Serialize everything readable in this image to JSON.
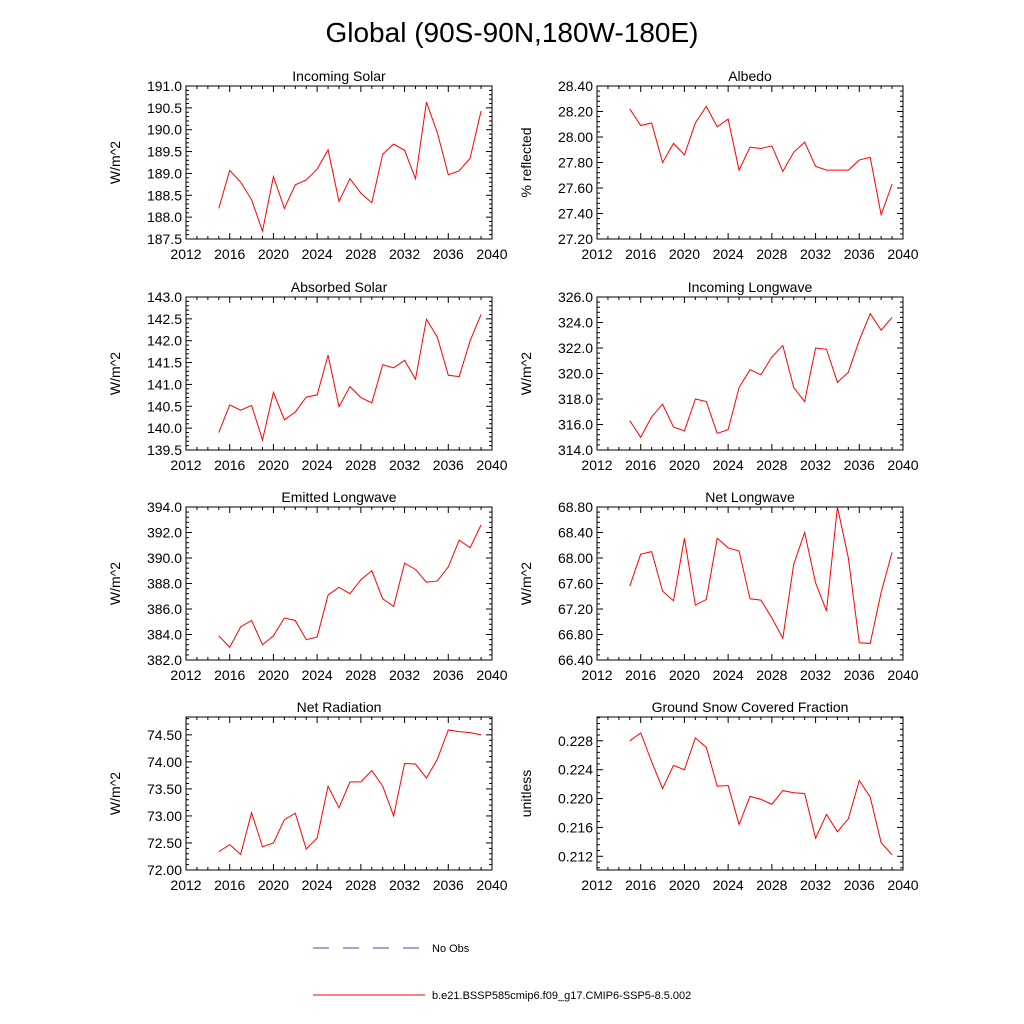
{
  "figure": {
    "title": "Global (90S-90N,180W-180E)",
    "legend": [
      {
        "label": "No Obs",
        "color": "#4a4aa8",
        "style": "dashed"
      },
      {
        "label": "b.e21.BSSP585cmip6.f09_g17.CMIP6-SSP5-8.5.002",
        "color": "#ff0000",
        "style": "solid"
      }
    ]
  },
  "chart_data": [
    {
      "type": "line",
      "title": "Incoming Solar",
      "ylabel": "W/m^2",
      "xlabel": "",
      "xlim": [
        2012,
        2040
      ],
      "xticks": [
        "2012",
        "2016",
        "2020",
        "2024",
        "2028",
        "2032",
        "2036",
        "2040"
      ],
      "ylim": [
        187.5,
        191.0
      ],
      "yticks": [
        "187.5",
        "188.0",
        "188.5",
        "189.0",
        "189.5",
        "190.0",
        "190.5",
        "191.0"
      ],
      "x": [
        2015,
        2016,
        2017,
        2018,
        2019,
        2020,
        2021,
        2022,
        2023,
        2024,
        2025,
        2026,
        2027,
        2028,
        2029,
        2030,
        2031,
        2032,
        2033,
        2034,
        2035,
        2036,
        2037,
        2038,
        2039
      ],
      "series": [
        {
          "name": "b.e21.BSSP585cmip6.f09_g17.CMIP6-SSP5-8.5.002",
          "color": "#ff0000",
          "values": [
            188.2,
            189.07,
            188.8,
            188.4,
            187.68,
            188.93,
            188.2,
            188.74,
            188.85,
            189.1,
            189.54,
            188.36,
            188.88,
            188.55,
            188.33,
            189.44,
            189.67,
            189.53,
            188.88,
            190.63,
            189.93,
            188.97,
            189.06,
            189.35,
            190.43
          ]
        }
      ]
    },
    {
      "type": "line",
      "title": "Albedo",
      "ylabel": "% reflected",
      "xlabel": "",
      "xlim": [
        2012,
        2040
      ],
      "xticks": [
        "2012",
        "2016",
        "2020",
        "2024",
        "2028",
        "2032",
        "2036",
        "2040"
      ],
      "ylim": [
        27.2,
        28.4
      ],
      "yticks": [
        "27.20",
        "27.40",
        "27.60",
        "27.80",
        "28.00",
        "28.20",
        "28.40"
      ],
      "x": [
        2015,
        2016,
        2017,
        2018,
        2019,
        2020,
        2021,
        2022,
        2023,
        2024,
        2025,
        2026,
        2027,
        2028,
        2029,
        2030,
        2031,
        2032,
        2033,
        2034,
        2035,
        2036,
        2037,
        2038,
        2039
      ],
      "series": [
        {
          "name": "b.e21.BSSP585cmip6.f09_g17.CMIP6-SSP5-8.5.002",
          "color": "#ff0000",
          "values": [
            28.22,
            28.09,
            28.11,
            27.8,
            27.95,
            27.86,
            28.11,
            28.24,
            28.08,
            28.14,
            27.74,
            27.92,
            27.91,
            27.93,
            27.73,
            27.88,
            27.96,
            27.77,
            27.74,
            27.74,
            27.74,
            27.82,
            27.84,
            27.39,
            27.63
          ]
        }
      ]
    },
    {
      "type": "line",
      "title": "Absorbed Solar",
      "ylabel": "W/m^2",
      "xlabel": "",
      "xlim": [
        2012,
        2040
      ],
      "xticks": [
        "2012",
        "2016",
        "2020",
        "2024",
        "2028",
        "2032",
        "2036",
        "2040"
      ],
      "ylim": [
        139.5,
        143.0
      ],
      "yticks": [
        "139.5",
        "140.0",
        "140.5",
        "141.0",
        "141.5",
        "142.0",
        "142.5",
        "143.0"
      ],
      "x": [
        2015,
        2016,
        2017,
        2018,
        2019,
        2020,
        2021,
        2022,
        2023,
        2024,
        2025,
        2026,
        2027,
        2028,
        2029,
        2030,
        2031,
        2032,
        2033,
        2034,
        2035,
        2036,
        2037,
        2038,
        2039
      ],
      "series": [
        {
          "name": "b.e21.BSSP585cmip6.f09_g17.CMIP6-SSP5-8.5.002",
          "color": "#ff0000",
          "values": [
            139.9,
            140.53,
            140.41,
            140.52,
            139.73,
            140.82,
            140.19,
            140.37,
            140.71,
            140.76,
            141.67,
            140.49,
            140.95,
            140.7,
            140.58,
            141.45,
            141.38,
            141.55,
            141.12,
            142.49,
            142.08,
            141.21,
            141.18,
            142.0,
            142.6
          ]
        }
      ]
    },
    {
      "type": "line",
      "title": "Incoming Longwave",
      "ylabel": "W/m^2",
      "xlabel": "",
      "xlim": [
        2012,
        2040
      ],
      "xticks": [
        "2012",
        "2016",
        "2020",
        "2024",
        "2028",
        "2032",
        "2036",
        "2040"
      ],
      "ylim": [
        314.0,
        326.0
      ],
      "yticks": [
        "314.0",
        "316.0",
        "318.0",
        "320.0",
        "322.0",
        "324.0",
        "326.0"
      ],
      "x": [
        2015,
        2016,
        2017,
        2018,
        2019,
        2020,
        2021,
        2022,
        2023,
        2024,
        2025,
        2026,
        2027,
        2028,
        2029,
        2030,
        2031,
        2032,
        2033,
        2034,
        2035,
        2036,
        2037,
        2038,
        2039
      ],
      "series": [
        {
          "name": "b.e21.BSSP585cmip6.f09_g17.CMIP6-SSP5-8.5.002",
          "color": "#ff0000",
          "values": [
            316.3,
            315.0,
            316.6,
            317.6,
            315.8,
            315.5,
            318.0,
            317.8,
            315.3,
            315.6,
            318.9,
            320.3,
            319.9,
            321.3,
            322.2,
            318.9,
            317.8,
            322.0,
            321.9,
            319.3,
            320.1,
            322.6,
            324.7,
            323.4,
            324.4
          ]
        }
      ]
    },
    {
      "type": "line",
      "title": "Emitted Longwave",
      "ylabel": "W/m^2",
      "xlabel": "",
      "xlim": [
        2012,
        2040
      ],
      "xticks": [
        "2012",
        "2016",
        "2020",
        "2024",
        "2028",
        "2032",
        "2036",
        "2040"
      ],
      "ylim": [
        382.0,
        394.0
      ],
      "yticks": [
        "382.0",
        "384.0",
        "386.0",
        "388.0",
        "390.0",
        "392.0",
        "394.0"
      ],
      "x": [
        2015,
        2016,
        2017,
        2018,
        2019,
        2020,
        2021,
        2022,
        2023,
        2024,
        2025,
        2026,
        2027,
        2028,
        2029,
        2030,
        2031,
        2032,
        2033,
        2034,
        2035,
        2036,
        2037,
        2038,
        2039
      ],
      "series": [
        {
          "name": "b.e21.BSSP585cmip6.f09_g17.CMIP6-SSP5-8.5.002",
          "color": "#ff0000",
          "values": [
            383.9,
            383.0,
            384.6,
            385.1,
            383.2,
            383.9,
            385.3,
            385.1,
            383.6,
            383.8,
            387.1,
            387.7,
            387.2,
            388.3,
            389.0,
            386.8,
            386.2,
            389.6,
            389.1,
            388.1,
            388.2,
            389.3,
            391.4,
            390.8,
            392.6
          ]
        }
      ]
    },
    {
      "type": "line",
      "title": "Net Longwave",
      "ylabel": "W/m^2",
      "xlabel": "",
      "xlim": [
        2012,
        2040
      ],
      "xticks": [
        "2012",
        "2016",
        "2020",
        "2024",
        "2028",
        "2032",
        "2036",
        "2040"
      ],
      "ylim": [
        66.4,
        68.8
      ],
      "yticks": [
        "66.40",
        "66.80",
        "67.20",
        "67.60",
        "68.00",
        "68.40",
        "68.80"
      ],
      "x": [
        2015,
        2016,
        2017,
        2018,
        2019,
        2020,
        2021,
        2022,
        2023,
        2024,
        2025,
        2026,
        2027,
        2028,
        2029,
        2030,
        2031,
        2032,
        2033,
        2034,
        2035,
        2036,
        2037,
        2038,
        2039
      ],
      "series": [
        {
          "name": "b.e21.BSSP585cmip6.f09_g17.CMIP6-SSP5-8.5.002",
          "color": "#ff0000",
          "values": [
            67.56,
            68.06,
            68.1,
            67.48,
            67.33,
            68.31,
            67.26,
            67.35,
            68.31,
            68.16,
            68.11,
            67.36,
            67.34,
            67.06,
            66.74,
            67.9,
            68.4,
            67.61,
            67.17,
            68.8,
            68.0,
            66.67,
            66.66,
            67.46,
            68.09
          ]
        }
      ]
    },
    {
      "type": "line",
      "title": "Net Radiation",
      "ylabel": "W/m^2",
      "xlabel": "",
      "xlim": [
        2012,
        2040
      ],
      "xticks": [
        "2012",
        "2016",
        "2020",
        "2024",
        "2028",
        "2032",
        "2036",
        "2040"
      ],
      "ylim": [
        72.0,
        74.83
      ],
      "yticks": [
        "72.00",
        "72.50",
        "73.00",
        "73.50",
        "74.00",
        "74.50"
      ],
      "ytick_values": [
        72.0,
        72.5,
        73.0,
        73.5,
        74.0,
        74.5
      ],
      "x": [
        2015,
        2016,
        2017,
        2018,
        2019,
        2020,
        2021,
        2022,
        2023,
        2024,
        2025,
        2026,
        2027,
        2028,
        2029,
        2030,
        2031,
        2032,
        2033,
        2034,
        2035,
        2036,
        2037,
        2038,
        2039
      ],
      "series": [
        {
          "name": "b.e21.BSSP585cmip6.f09_g17.CMIP6-SSP5-8.5.002",
          "color": "#ff0000",
          "values": [
            72.34,
            72.47,
            72.29,
            73.06,
            72.43,
            72.5,
            72.93,
            73.05,
            72.39,
            72.59,
            73.55,
            73.15,
            73.63,
            73.63,
            73.84,
            73.55,
            73.0,
            73.97,
            73.96,
            73.7,
            74.05,
            74.59,
            74.56,
            74.54,
            74.5
          ]
        }
      ]
    },
    {
      "type": "line",
      "title": "Ground Snow Covered Fraction",
      "ylabel": "unitless",
      "xlabel": "",
      "xlim": [
        2012,
        2040
      ],
      "xticks": [
        "2012",
        "2016",
        "2020",
        "2024",
        "2028",
        "2032",
        "2036",
        "2040"
      ],
      "ylim": [
        0.2101,
        0.2313
      ],
      "yticks": [
        "0.212",
        "0.216",
        "0.220",
        "0.224",
        "0.228"
      ],
      "ytick_values": [
        0.212,
        0.216,
        0.22,
        0.224,
        0.228
      ],
      "x": [
        2015,
        2016,
        2017,
        2018,
        2019,
        2020,
        2021,
        2022,
        2023,
        2024,
        2025,
        2026,
        2027,
        2028,
        2029,
        2030,
        2031,
        2032,
        2033,
        2034,
        2035,
        2036,
        2037,
        2038,
        2039
      ],
      "series": [
        {
          "name": "b.e21.BSSP585cmip6.f09_g17.CMIP6-SSP5-8.5.002",
          "color": "#ff0000",
          "values": [
            0.228,
            0.2291,
            0.2251,
            0.2214,
            0.2246,
            0.224,
            0.2284,
            0.2271,
            0.2217,
            0.2218,
            0.2164,
            0.2203,
            0.2199,
            0.2192,
            0.2211,
            0.2208,
            0.2207,
            0.2145,
            0.2178,
            0.2154,
            0.2172,
            0.2225,
            0.2202,
            0.2139,
            0.2122
          ]
        }
      ]
    }
  ]
}
